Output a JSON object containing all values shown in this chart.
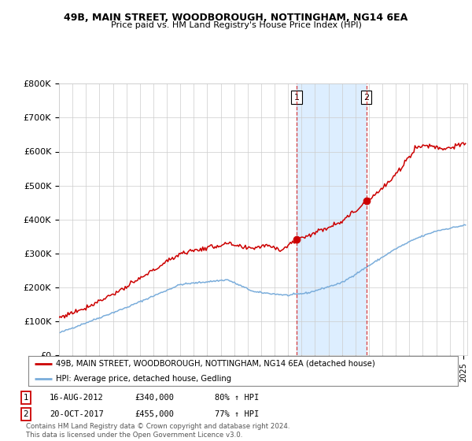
{
  "title": "49B, MAIN STREET, WOODBOROUGH, NOTTINGHAM, NG14 6EA",
  "subtitle": "Price paid vs. HM Land Registry's House Price Index (HPI)",
  "ylabel_ticks": [
    "£0",
    "£100K",
    "£200K",
    "£300K",
    "£400K",
    "£500K",
    "£600K",
    "£700K",
    "£800K"
  ],
  "ylim": [
    0,
    800000
  ],
  "xlim_start": 1995.0,
  "xlim_end": 2025.3,
  "sale1_year": 2012.625,
  "sale1_price": 340000,
  "sale1_label": "1",
  "sale2_year": 2017.8,
  "sale2_price": 455000,
  "sale2_label": "2",
  "legend_line1": "49B, MAIN STREET, WOODBOROUGH, NOTTINGHAM, NG14 6EA (detached house)",
  "legend_line2": "HPI: Average price, detached house, Gedling",
  "footnote": "Contains HM Land Registry data © Crown copyright and database right 2024.\nThis data is licensed under the Open Government Licence v3.0.",
  "red_color": "#cc0000",
  "blue_color": "#7aaddb",
  "shade_color": "#ddeeff",
  "background_color": "#ffffff",
  "grid_color": "#cccccc"
}
